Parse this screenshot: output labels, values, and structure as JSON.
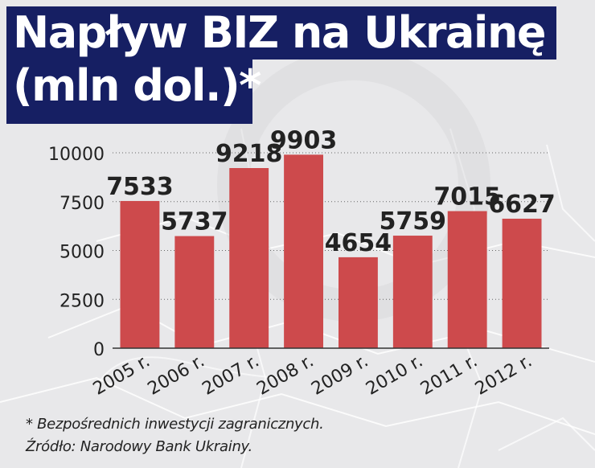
{
  "title": {
    "line1": "Napływ BIZ na Ukrainę",
    "line2": "(mln dol.)*"
  },
  "footnotes": {
    "note": "* Bezpośrednich inwestycji zagranicznych.",
    "source": "Źródło: Narodowy Bank Ukrainy."
  },
  "colors": {
    "bar": "#cd4a4c",
    "title_bg": "#161f63",
    "text": "#222222"
  },
  "chart_data": {
    "type": "bar",
    "title": "Napływ BIZ na Ukrainę (mln dol.)*",
    "categories": [
      "2005 r.",
      "2006 r.",
      "2007 r.",
      "2008 r.",
      "2009 r.",
      "2010 r.",
      "2011 r.",
      "2012 r."
    ],
    "values": [
      7533,
      5737,
      9218,
      9903,
      4654,
      5759,
      7015,
      6627
    ],
    "data_labels": [
      "7533",
      "5737",
      "9218",
      "9903",
      "4654",
      "5759",
      "7015",
      "6627"
    ],
    "yticks": [
      0,
      2500,
      5000,
      7500,
      10000
    ],
    "ytick_labels": [
      "0",
      "2500",
      "5000",
      "7500",
      "10000"
    ],
    "ylim": [
      0,
      10000
    ],
    "grid": true,
    "legend": "none"
  }
}
